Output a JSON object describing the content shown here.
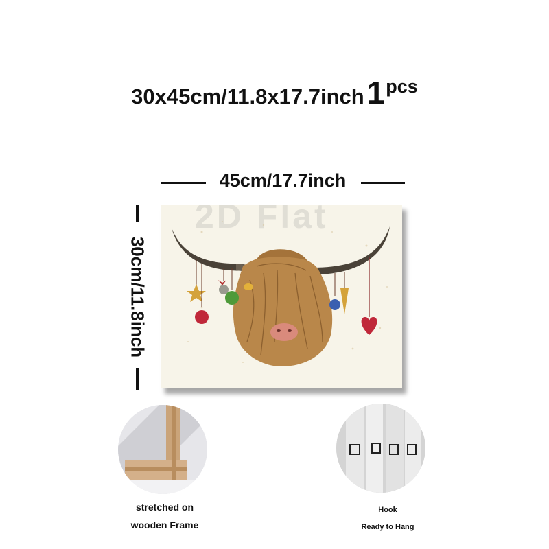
{
  "headline": {
    "size_text": "30x45cm/11.8x17.7inch",
    "quantity_number": "1",
    "quantity_unit": "pcs"
  },
  "dimensions": {
    "width_label": "45cm/17.7inch",
    "height_label": "30cm/11.8inch"
  },
  "canvas": {
    "watermark_text": "2D Flat",
    "subject": "highland cow with hanging christmas ornaments"
  },
  "features": [
    {
      "image": "wooden-frame-corner-photo",
      "lines": [
        "stretched on",
        "wooden Frame"
      ]
    },
    {
      "image": "hook-clip-photo",
      "lines": [
        "Hook",
        "Ready to Hang"
      ]
    }
  ],
  "colors": {
    "text": "#111111",
    "canvas_background": "#f7f4e9",
    "fur": "#b9874a",
    "horn": "#4a4238"
  }
}
